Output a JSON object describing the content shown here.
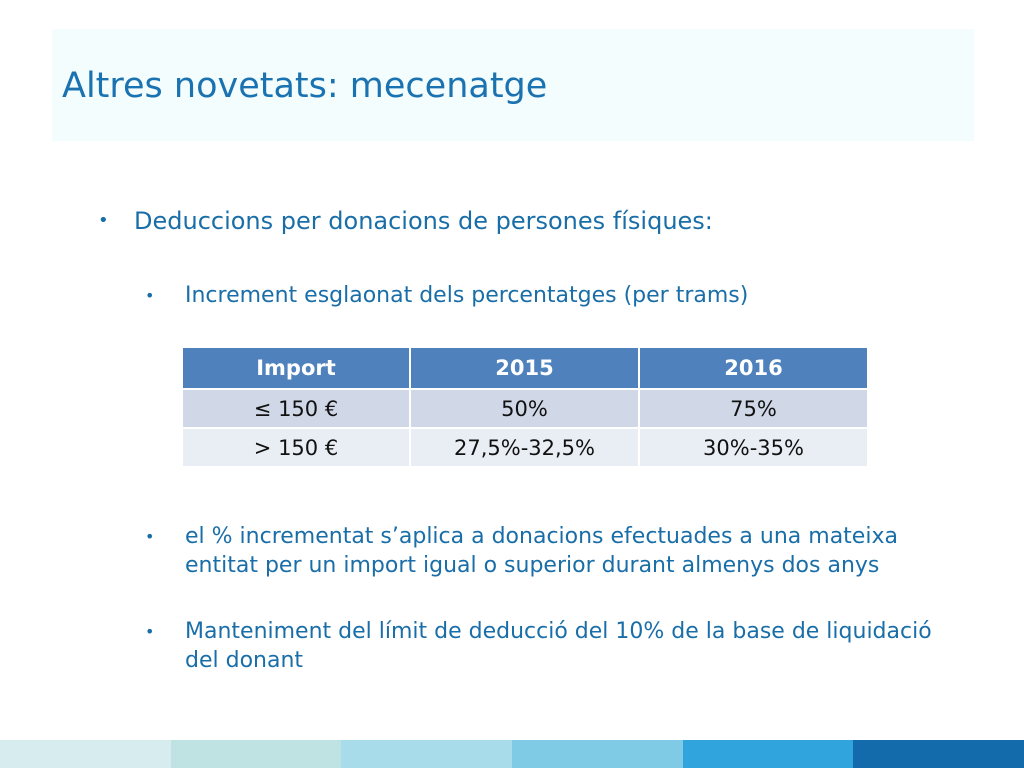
{
  "slide": {
    "title": "Altres novetats: mecenatge",
    "bullet1": "Deduccions per donacions de persones físiques:",
    "bullet2": "Increment esglaonat dels percentatges (per trams)",
    "bullet3": "el % incrementat s’aplica a donacions efectuades a una mateixa entitat per un import igual o superior durant almenys dos anys",
    "bullet4": "Manteniment del límit de deducció del 10% de la base de liquidació del donant",
    "bullet_char": "•"
  },
  "table": {
    "headers": [
      "Import",
      "2015",
      "2016"
    ],
    "rows": [
      [
        "≤ 150 €",
        "50%",
        "75%"
      ],
      [
        "> 150 €",
        "27,5%-32,5%",
        "30%-35%"
      ]
    ]
  },
  "colors": {
    "title": "#1b72b0",
    "text": "#1a6ea8",
    "table_header": "#4f81bd",
    "footer": [
      "#d7ecef",
      "#bfe3e3",
      "#a8dcea",
      "#7fcbe6",
      "#2fa4dd",
      "#146bab"
    ]
  }
}
